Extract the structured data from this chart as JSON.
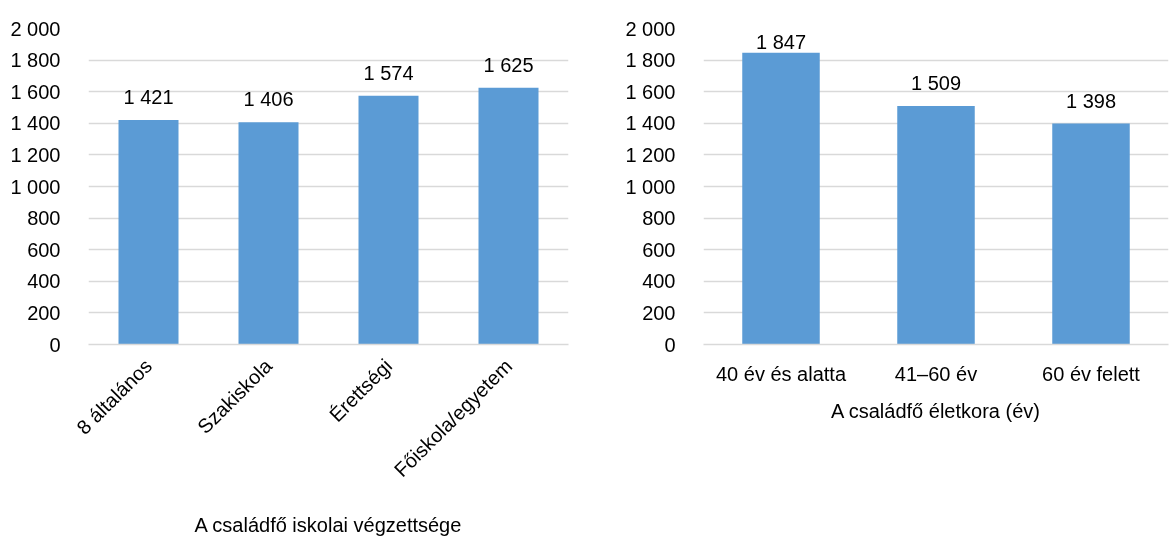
{
  "chart_data": [
    {
      "type": "bar",
      "categories": [
        "8 általános",
        "Szakiskola",
        "Érettségi",
        "Főiskola/egyetem"
      ],
      "values": [
        1421,
        1406,
        1574,
        1625
      ],
      "value_labels": [
        "1 421",
        "1 406",
        "1 574",
        "1 625"
      ],
      "color": "#5b9bd5",
      "xlabel": "A családfő iskolai végzettsége",
      "ylim": [
        0,
        2000
      ],
      "yticks": [
        0,
        200,
        400,
        600,
        800,
        {
          "value": 1000,
          "label": "1 000"
        },
        {
          "value": 1200,
          "label": "1 200"
        },
        {
          "value": 1400,
          "label": "1 400"
        },
        {
          "value": 1600,
          "label": "1 600"
        },
        {
          "value": 1800,
          "label": "1 800"
        },
        {
          "value": 2000,
          "label": "2 000"
        }
      ],
      "grid": "y"
    },
    {
      "type": "bar",
      "categories": [
        "40 év és alatta",
        "41–60 év",
        "60 év felett"
      ],
      "values": [
        1847,
        1509,
        1398
      ],
      "value_labels": [
        "1 847",
        "1 509",
        "1 398"
      ],
      "color": "#5b9bd5",
      "xlabel": "A családfő életkora (év)",
      "ylim": [
        0,
        2000
      ],
      "yticks": [
        0,
        200,
        400,
        600,
        800,
        {
          "value": 1000,
          "label": "1 000"
        },
        {
          "value": 1200,
          "label": "1 200"
        },
        {
          "value": 1400,
          "label": "1 400"
        },
        {
          "value": 1600,
          "label": "1 600"
        },
        {
          "value": 1800,
          "label": "1 800"
        },
        {
          "value": 2000,
          "label": "2 000"
        }
      ],
      "grid": "y"
    }
  ]
}
